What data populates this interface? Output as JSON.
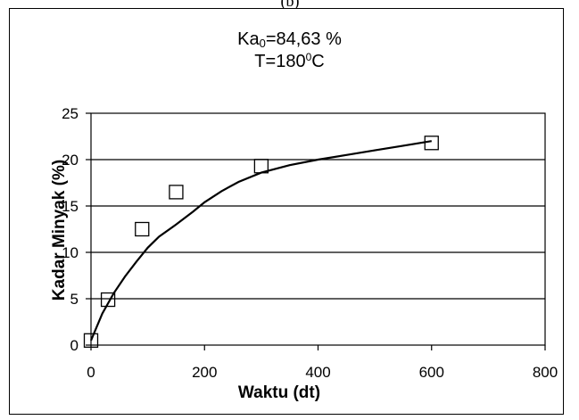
{
  "panel_label": "(b)",
  "chart_data": {
    "type": "scatter",
    "title_line1_prefix": "Ka",
    "title_line1_sub": "0",
    "title_line1_suffix": "=84,63 %",
    "title_line2_prefix": "T=180",
    "title_line2_sup": "0",
    "title_line2_suffix": "C",
    "xlabel": "Waktu (dt)",
    "ylabel": "Kadar Minyak (%)",
    "xlim": [
      0,
      800
    ],
    "ylim": [
      0,
      25
    ],
    "x_ticks": [
      0,
      200,
      400,
      600,
      800
    ],
    "y_ticks": [
      0,
      5,
      10,
      15,
      20,
      25
    ],
    "x_tick_labels": [
      "0",
      "200",
      "400",
      "600",
      "800"
    ],
    "y_tick_labels": [
      "0",
      "5",
      "10",
      "15",
      "20",
      "25"
    ],
    "grid": "horizontal",
    "legend": "none",
    "marker": "open-square",
    "series": [
      {
        "x": [
          0,
          30,
          90,
          150,
          300,
          600
        ],
        "y": [
          0.5,
          4.9,
          12.5,
          16.5,
          19.3,
          21.8
        ]
      }
    ],
    "fit_curve": {
      "x": [
        0,
        20,
        40,
        60,
        80,
        100,
        120,
        150,
        180,
        200,
        230,
        260,
        300,
        350,
        400,
        450,
        500,
        550,
        600
      ],
      "y": [
        0.5,
        3.4,
        5.6,
        7.4,
        9.0,
        10.5,
        11.7,
        13.0,
        14.4,
        15.4,
        16.6,
        17.6,
        18.6,
        19.4,
        20.0,
        20.5,
        21.0,
        21.5,
        22.0
      ]
    },
    "colors": {
      "line": "#000000",
      "marker": "#000000",
      "grid": "#000000",
      "plot_bg": "#ffffff"
    }
  }
}
